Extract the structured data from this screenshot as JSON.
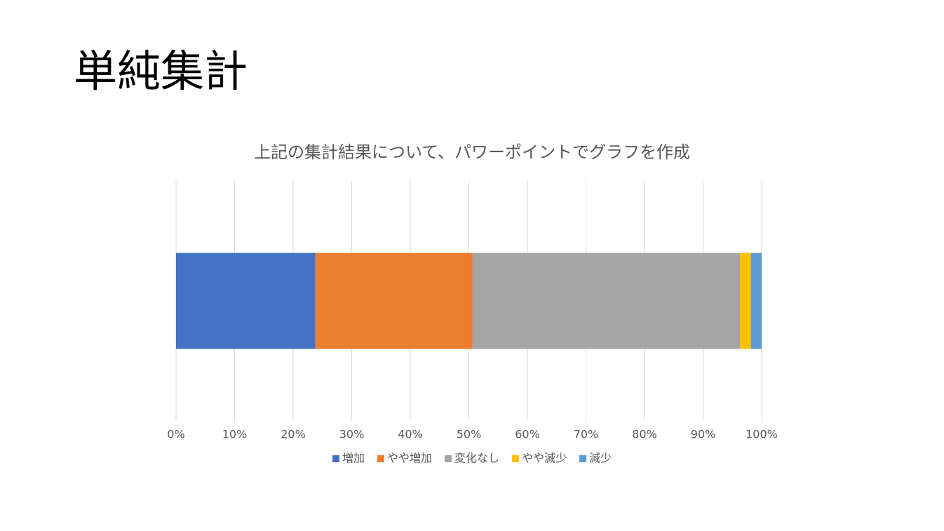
{
  "slide_title": "単純集計",
  "chart_data": {
    "type": "bar",
    "orientation": "horizontal",
    "stacked": true,
    "title": "上記の集計結果について、パワーポイントでグラフを作成",
    "categories": [
      null
    ],
    "series": [
      {
        "name": "増加",
        "color": "#4472c4",
        "values": [
          23.8
        ]
      },
      {
        "name": "やや増加",
        "color": "#ed7d31",
        "values": [
          26.8
        ]
      },
      {
        "name": "変化なし",
        "color": "#a5a5a5",
        "values": [
          45.7
        ]
      },
      {
        "name": "やや減少",
        "color": "#ffc000",
        "values": [
          1.9
        ]
      },
      {
        "name": "減少",
        "color": "#5b9bd5",
        "values": [
          1.8
        ]
      }
    ],
    "xlim": [
      0,
      100
    ],
    "xticks": [
      {
        "value": 0,
        "label": "0%"
      },
      {
        "value": 10,
        "label": "10%"
      },
      {
        "value": 20,
        "label": "20%"
      },
      {
        "value": 30,
        "label": "30%"
      },
      {
        "value": 40,
        "label": "40%"
      },
      {
        "value": 50,
        "label": "50%"
      },
      {
        "value": 60,
        "label": "60%"
      },
      {
        "value": 70,
        "label": "70%"
      },
      {
        "value": 80,
        "label": "80%"
      },
      {
        "value": 90,
        "label": "90%"
      },
      {
        "value": 100,
        "label": "100%"
      }
    ],
    "grid": true,
    "legend": "bottom"
  }
}
